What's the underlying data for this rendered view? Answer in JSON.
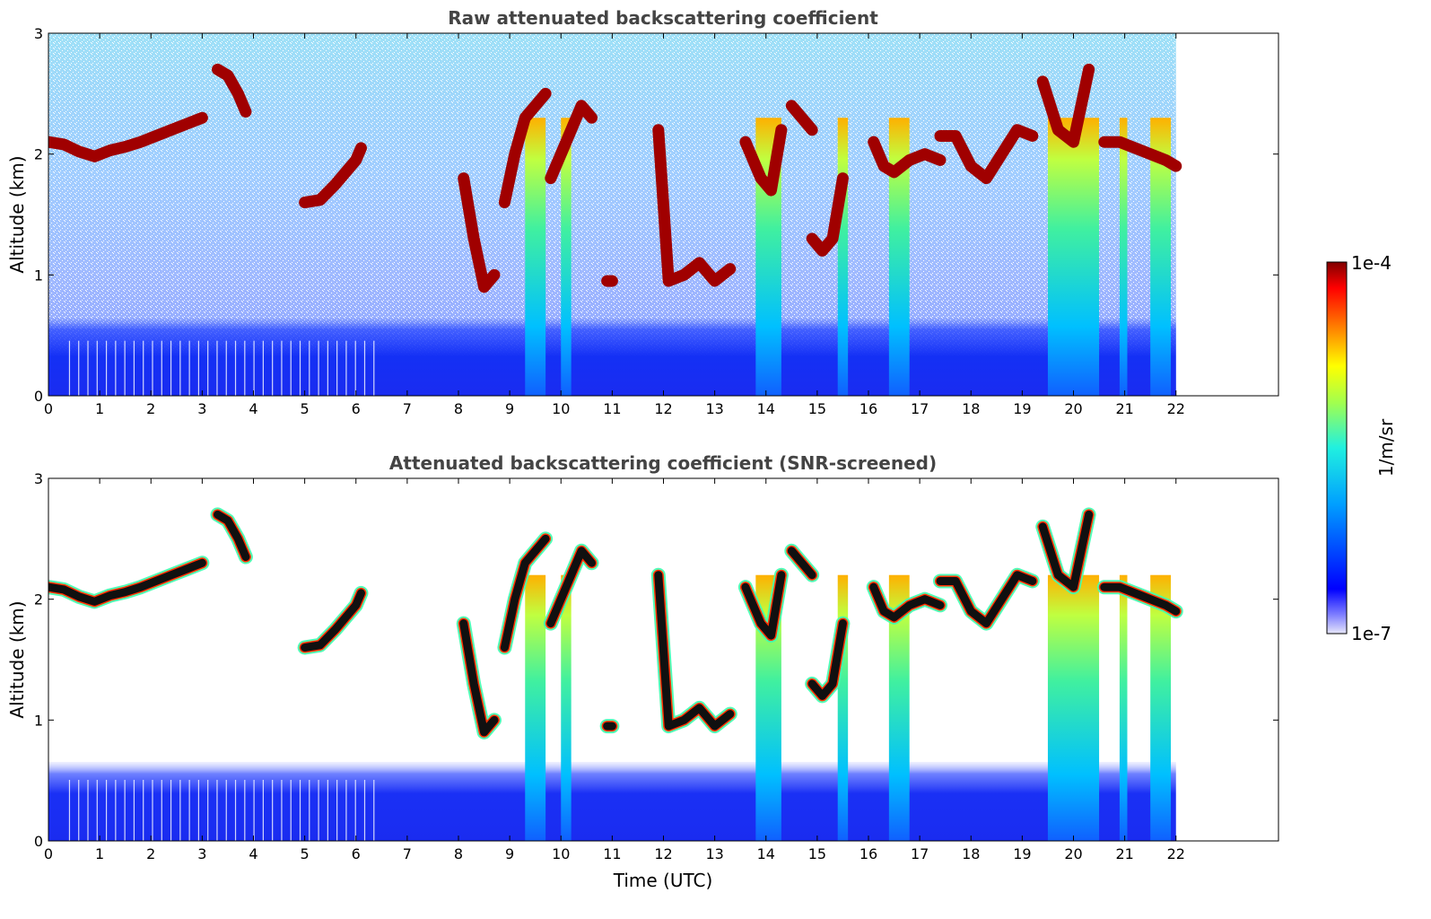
{
  "figure": {
    "shared_xlabel": "Time (UTC)",
    "ylabel": "Altitude (km)",
    "colorbar": {
      "label": "1/m/sr",
      "max_label": "1e-4",
      "min_label": "1e-7",
      "scale": "log",
      "range": [
        1e-07,
        0.0001
      ],
      "colormap": "jet"
    }
  },
  "chart_data": [
    {
      "type": "heatmap",
      "title": "Raw attenuated backscattering coefficient",
      "xlabel": "",
      "ylabel": "Altitude (km)",
      "xlim": [
        0,
        24
      ],
      "ylim": [
        0,
        3
      ],
      "xticks": [
        "0",
        "1",
        "2",
        "3",
        "4",
        "5",
        "6",
        "7",
        "8",
        "9",
        "10",
        "11",
        "12",
        "13",
        "14",
        "15",
        "16",
        "17",
        "18",
        "19",
        "20",
        "21",
        "22"
      ],
      "yticks": [
        "0",
        "1",
        "2",
        "3"
      ],
      "data_end_hour": 22,
      "features": {
        "boundary_layer_top_km": 0.5,
        "cloud_layers": [
          {
            "x": [
              0.0,
              0.3,
              0.6,
              0.9,
              1.2,
              1.5,
              1.8,
              2.1,
              2.4,
              2.7,
              3.0
            ],
            "y": [
              2.1,
              2.08,
              2.02,
              1.98,
              2.03,
              2.06,
              2.1,
              2.15,
              2.2,
              2.25,
              2.3
            ]
          },
          {
            "x": [
              3.3,
              3.5,
              3.7,
              3.85
            ],
            "y": [
              2.7,
              2.65,
              2.5,
              2.35
            ]
          },
          {
            "x": [
              5.0,
              5.3,
              5.6,
              5.8,
              6.0,
              6.1
            ],
            "y": [
              1.6,
              1.62,
              1.75,
              1.85,
              1.95,
              2.05
            ]
          },
          {
            "x": [
              8.1,
              8.3,
              8.5,
              8.7
            ],
            "y": [
              1.8,
              1.3,
              0.9,
              1.0
            ]
          },
          {
            "x": [
              8.9,
              9.1,
              9.3,
              9.5,
              9.7
            ],
            "y": [
              1.6,
              2.0,
              2.3,
              2.4,
              2.5
            ]
          },
          {
            "x": [
              9.8,
              10.0,
              10.2,
              10.4,
              10.6
            ],
            "y": [
              1.8,
              2.0,
              2.2,
              2.4,
              2.3
            ]
          },
          {
            "x": [
              10.9,
              11.0
            ],
            "y": [
              0.95,
              0.95
            ]
          },
          {
            "x": [
              11.9,
              12.1,
              12.4,
              12.7,
              13.0,
              13.3
            ],
            "y": [
              2.2,
              0.95,
              1.0,
              1.1,
              0.95,
              1.05
            ]
          },
          {
            "x": [
              13.6,
              13.9,
              14.1,
              14.3
            ],
            "y": [
              2.1,
              1.8,
              1.7,
              2.2
            ]
          },
          {
            "x": [
              14.5,
              14.7,
              14.9
            ],
            "y": [
              2.4,
              2.3,
              2.2
            ]
          },
          {
            "x": [
              14.9,
              15.1,
              15.3,
              15.5
            ],
            "y": [
              1.3,
              1.2,
              1.3,
              1.8
            ]
          },
          {
            "x": [
              16.1,
              16.3,
              16.5,
              16.8,
              17.1,
              17.4
            ],
            "y": [
              2.1,
              1.9,
              1.85,
              1.95,
              2.0,
              1.95
            ]
          },
          {
            "x": [
              17.4,
              17.7,
              18.0,
              18.3,
              18.6,
              18.9,
              19.2
            ],
            "y": [
              2.15,
              2.15,
              1.9,
              1.8,
              2.0,
              2.2,
              2.15
            ]
          },
          {
            "x": [
              19.4,
              19.7,
              20.0,
              20.3
            ],
            "y": [
              2.6,
              2.2,
              2.1,
              2.7
            ]
          },
          {
            "x": [
              20.6,
              20.9,
              21.2,
              21.5,
              21.8,
              22.0
            ],
            "y": [
              2.1,
              2.1,
              2.05,
              2.0,
              1.95,
              1.9
            ]
          }
        ],
        "precipitation_shafts": [
          {
            "x_start": 9.3,
            "x_end": 9.7
          },
          {
            "x_start": 10.0,
            "x_end": 10.2
          },
          {
            "x_start": 13.8,
            "x_end": 14.3
          },
          {
            "x_start": 15.4,
            "x_end": 15.6
          },
          {
            "x_start": 16.4,
            "x_end": 16.8
          },
          {
            "x_start": 19.5,
            "x_end": 20.5
          },
          {
            "x_start": 20.9,
            "x_end": 21.05
          },
          {
            "x_start": 21.5,
            "x_end": 21.9
          }
        ]
      }
    },
    {
      "type": "heatmap",
      "title": "Attenuated backscattering coefficient (SNR-screened)",
      "xlabel": "Time (UTC)",
      "ylabel": "Altitude (km)",
      "xlim": [
        0,
        24
      ],
      "ylim": [
        0,
        3
      ],
      "xticks": [
        "0",
        "1",
        "2",
        "3",
        "4",
        "5",
        "6",
        "7",
        "8",
        "9",
        "10",
        "11",
        "12",
        "13",
        "14",
        "15",
        "16",
        "17",
        "18",
        "19",
        "20",
        "21",
        "22"
      ],
      "yticks": [
        "0",
        "1",
        "2",
        "3"
      ],
      "data_end_hour": 22,
      "features": {
        "boundary_layer_top_km": 0.55,
        "screened_above_boundary_layer": true
      }
    }
  ]
}
